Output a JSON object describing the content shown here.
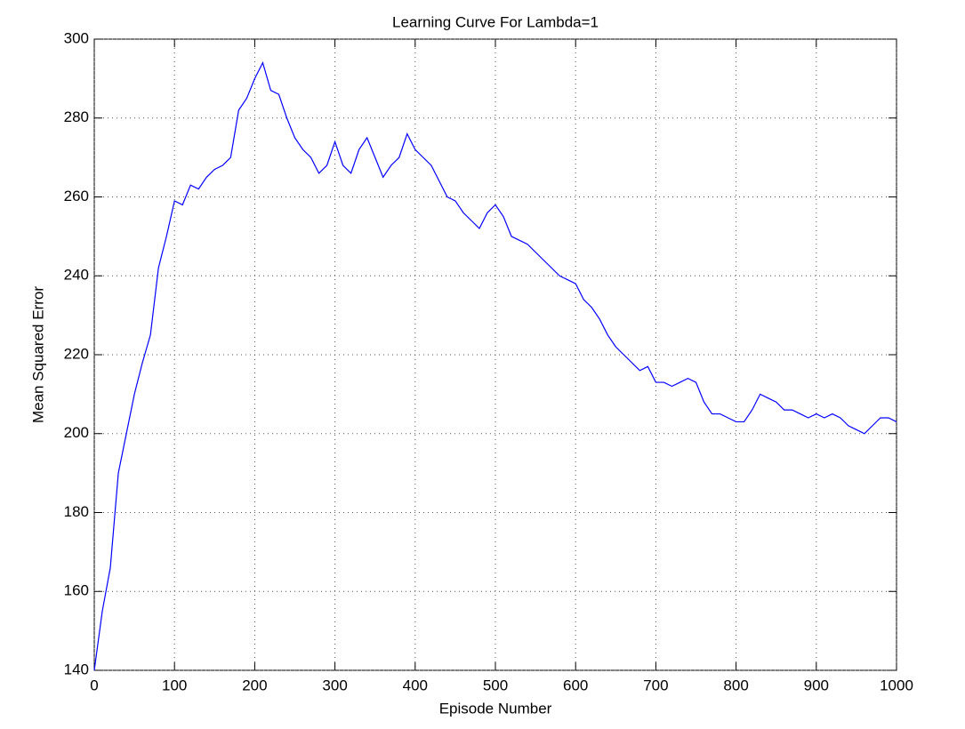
{
  "chart_data": {
    "type": "line",
    "title": "Learning Curve For Lambda=1",
    "x_label": "Episode Number",
    "y_label": "Mean Squared Error",
    "x": [
      0,
      10,
      20,
      30,
      40,
      50,
      60,
      70,
      80,
      90,
      100,
      110,
      120,
      130,
      140,
      150,
      160,
      170,
      180,
      190,
      200,
      210,
      220,
      230,
      240,
      250,
      260,
      270,
      280,
      290,
      300,
      310,
      320,
      330,
      340,
      350,
      360,
      370,
      380,
      390,
      400,
      410,
      420,
      430,
      440,
      450,
      460,
      470,
      480,
      490,
      500,
      510,
      520,
      530,
      540,
      550,
      560,
      570,
      580,
      590,
      600,
      610,
      620,
      630,
      640,
      650,
      660,
      670,
      680,
      690,
      700,
      710,
      720,
      730,
      740,
      750,
      760,
      770,
      780,
      790,
      800,
      810,
      820,
      830,
      840,
      850,
      860,
      870,
      880,
      890,
      900,
      910,
      920,
      930,
      940,
      950,
      960,
      970,
      980,
      990,
      1000
    ],
    "values": [
      140,
      155,
      166,
      190,
      200,
      210,
      218,
      225,
      242,
      250,
      259,
      258,
      263,
      262,
      265,
      267,
      268,
      270,
      282,
      285,
      290,
      294,
      287,
      286,
      280,
      275,
      272,
      270,
      266,
      268,
      274,
      268,
      266,
      272,
      275,
      270,
      265,
      268,
      270,
      276,
      272,
      270,
      268,
      264,
      260,
      259,
      256,
      254,
      252,
      256,
      258,
      255,
      250,
      249,
      248,
      246,
      244,
      242,
      240,
      239,
      238,
      234,
      232,
      229,
      225,
      222,
      220,
      218,
      216,
      217,
      213,
      213,
      212,
      213,
      214,
      213,
      208,
      205,
      205,
      204,
      203,
      203,
      206,
      210,
      209,
      208,
      206,
      206,
      205,
      204,
      205,
      204,
      205,
      204,
      202,
      201,
      200,
      202,
      204,
      204,
      203
    ],
    "color": "#0000ff",
    "xlim": [
      0,
      1000
    ],
    "xticks": [
      0,
      100,
      200,
      300,
      400,
      500,
      600,
      700,
      800,
      900,
      1000
    ],
    "ylim": [
      140,
      300
    ],
    "yticks": [
      140,
      160,
      180,
      200,
      220,
      240,
      260,
      280,
      300
    ],
    "grid": true
  }
}
